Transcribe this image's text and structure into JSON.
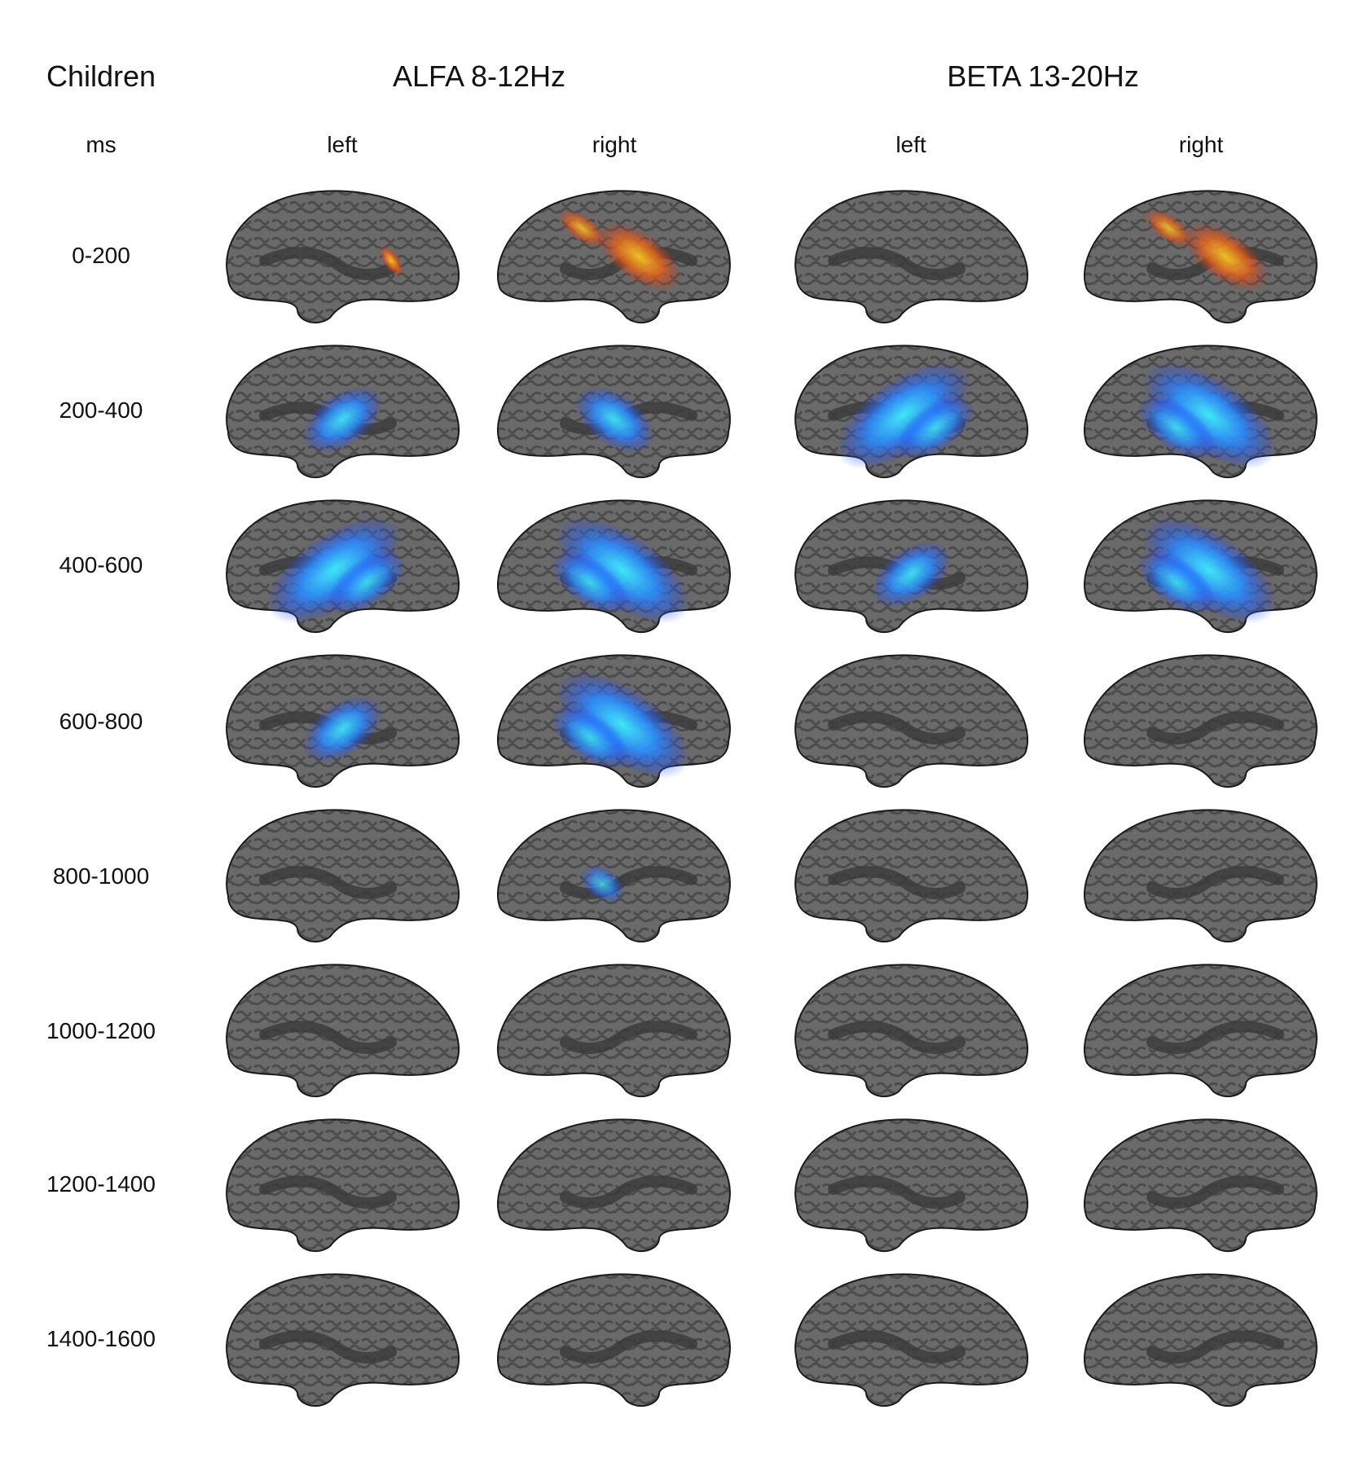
{
  "figure": {
    "group_label": "Children",
    "unit_label": "ms",
    "bands": [
      {
        "name": "ALFA 8-12Hz",
        "hemispheres": [
          "left",
          "right"
        ]
      },
      {
        "name": "BETA 13-20Hz",
        "hemispheres": [
          "left",
          "right"
        ]
      }
    ],
    "time_windows": [
      "0-200",
      "200-400",
      "400-600",
      "600-800",
      "800-1000",
      "1000-1200",
      "1200-1400",
      "1400-1600"
    ],
    "colors": {
      "background": "#ffffff",
      "cortex_gyri": "#6a6a6a",
      "cortex_sulci": "#4a4a4a",
      "increase": "#e8621a",
      "increase_strong": "#ffd21e",
      "decrease": "#1f4fff",
      "decrease_strong": "#3ef0ff"
    },
    "activation": {
      "comment": "",
      "cells": [
        [
          "weak-increase",
          "increase",
          "none",
          "increase"
        ],
        [
          "decrease",
          "decrease",
          "strong-decrease",
          "strong-decrease"
        ],
        [
          "strong-decrease",
          "strong-decrease",
          "decrease",
          "strong-decrease"
        ],
        [
          "decrease",
          "strong-decrease",
          "none",
          "none"
        ],
        [
          "none",
          "weak-decrease",
          "none",
          "none"
        ],
        [
          "none",
          "none",
          "none",
          "none"
        ],
        [
          "none",
          "none",
          "none",
          "none"
        ],
        [
          "none",
          "none",
          "none",
          "none"
        ]
      ]
    }
  }
}
